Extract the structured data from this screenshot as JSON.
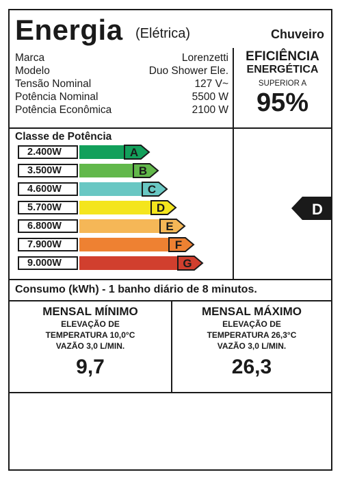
{
  "header": {
    "title": "Energia",
    "subtitle": "(Elétrica)",
    "category": "Chuveiro"
  },
  "specs": [
    {
      "label": "Marca",
      "value": "Lorenzetti"
    },
    {
      "label": "Modelo",
      "value": "Duo Shower Ele."
    },
    {
      "label": "Tensão Nominal",
      "value": "127 V~"
    },
    {
      "label": "Potência Nominal",
      "value": "5500 W"
    },
    {
      "label": "Potência Econômica",
      "value": "2100 W"
    }
  ],
  "efficiency": {
    "line1": "EFICIÊNCIA",
    "line2": "ENERGÉTICA",
    "line3": "SUPERIOR A",
    "value": "95%"
  },
  "classes": {
    "title": "Classe de Potência",
    "selected": "D",
    "rows": [
      {
        "power": "2.400W",
        "letter": "A",
        "color": "#12a05b",
        "level": 1
      },
      {
        "power": "3.500W",
        "letter": "B",
        "color": "#62b84b",
        "level": 2
      },
      {
        "power": "4.600W",
        "letter": "C",
        "color": "#69c7c3",
        "level": 3
      },
      {
        "power": "5.700W",
        "letter": "D",
        "color": "#f4e51d",
        "level": 4
      },
      {
        "power": "6.800W",
        "letter": "E",
        "color": "#f5b757",
        "level": 5
      },
      {
        "power": "7.900W",
        "letter": "F",
        "color": "#ee8132",
        "level": 6
      },
      {
        "power": "9.000W",
        "letter": "G",
        "color": "#d13f2e",
        "level": 7
      }
    ]
  },
  "consumo": {
    "text": "Consumo (kWh) - 1 banho diário de 8 minutos."
  },
  "monthly": {
    "min": {
      "title": "MENSAL MÍNIMO",
      "line1": "ELEVAÇÃO DE",
      "line2": "TEMPERATURA 10,0°C",
      "line3": "VAZÃO 3,0 L/MIN.",
      "value": "9,7"
    },
    "max": {
      "title": "MENSAL MÁXIMO",
      "line1": "ELEVAÇÃO DE",
      "line2": "TEMPERATURA 26,3°C",
      "line3": "VAZÃO 3,0 L/MIN.",
      "value": "26,3"
    }
  }
}
